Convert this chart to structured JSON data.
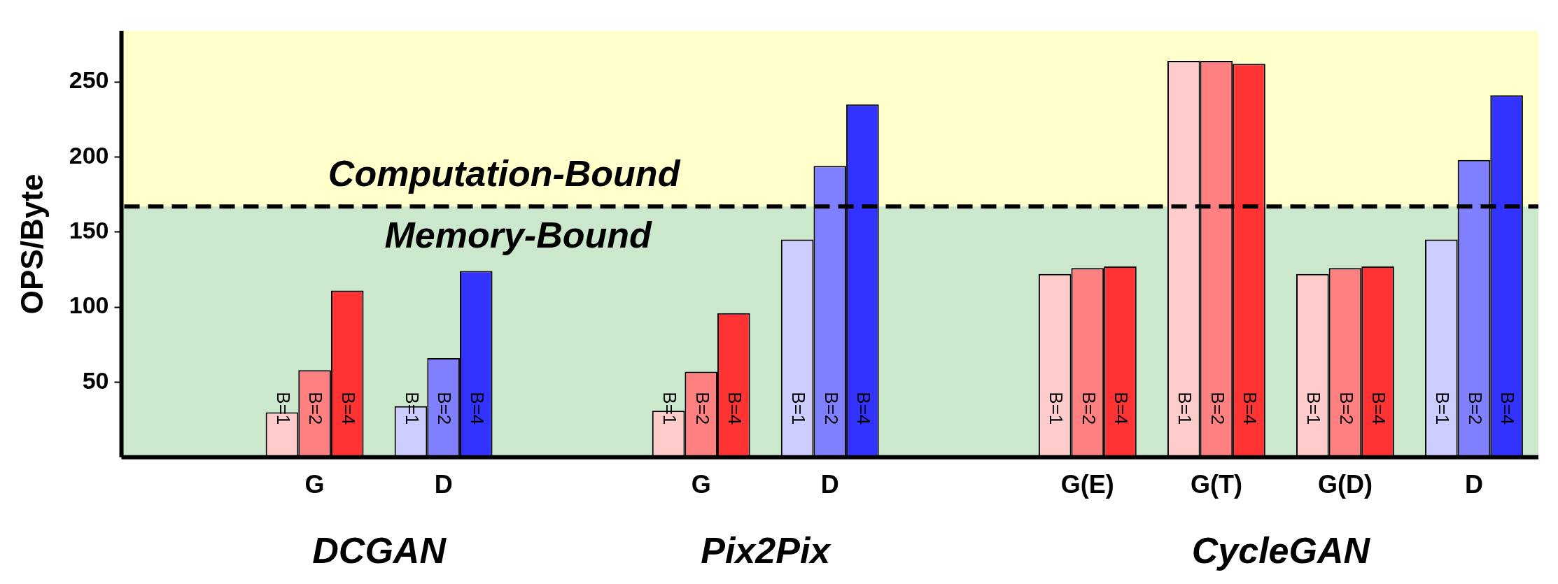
{
  "chart_data": {
    "type": "bar",
    "ylabel": "OPS/Byte",
    "categories": [
      null,
      "G",
      "D",
      null,
      "G",
      "D",
      null,
      "G(E)",
      "G(T)",
      "G(D)",
      "D"
    ],
    "series": [
      {
        "name": "B=1",
        "colors": [
          "#ffcccc",
          "#ffcccc",
          "#ccccff",
          "#ffcccc",
          "#ffcccc",
          "#ccccff",
          "#ffcccc",
          "#ffcccc",
          "#ffcccc",
          "#ffcccc",
          "#ccccff"
        ],
        "values": [
          null,
          30,
          34,
          null,
          31,
          145,
          null,
          122,
          264,
          122,
          145
        ]
      },
      {
        "name": "B=2",
        "colors": [
          "#ff8080",
          "#ff8080",
          "#8080ff",
          "#ff8080",
          "#ff8080",
          "#8080ff",
          "#ff8080",
          "#ff8080",
          "#ff8080",
          "#ff8080",
          "#8080ff"
        ],
        "values": [
          null,
          58,
          66,
          null,
          57,
          194,
          null,
          126,
          264,
          126,
          198
        ]
      },
      {
        "name": "B=4",
        "colors": [
          "#ff3333",
          "#ff3333",
          "#3333ff",
          "#ff3333",
          "#ff3333",
          "#3333ff",
          "#ff3333",
          "#ff3333",
          "#ff3333",
          "#ff3333",
          "#3333ff"
        ],
        "values": [
          null,
          111,
          124,
          null,
          96,
          235,
          null,
          127,
          262,
          127,
          241
        ]
      }
    ],
    "ylim": [
      0,
      284
    ],
    "yticks": [
      50,
      100,
      150,
      200,
      250
    ],
    "bands": [
      {
        "axis": "y",
        "from": 167,
        "to": 284,
        "label": "Computation-Bound",
        "color": "#ffffcc"
      },
      {
        "axis": "y",
        "from": 0,
        "to": 167,
        "label": "Memory-Bound",
        "color": "#cce8cc"
      }
    ],
    "ref_lines": [
      {
        "axis": "y",
        "value": 167,
        "line_style": "dashed",
        "color": "#000000"
      }
    ],
    "annotations": [
      "DCGAN",
      "Pix2Pix",
      "CycleGAN"
    ],
    "grid": false,
    "legend": false
  }
}
